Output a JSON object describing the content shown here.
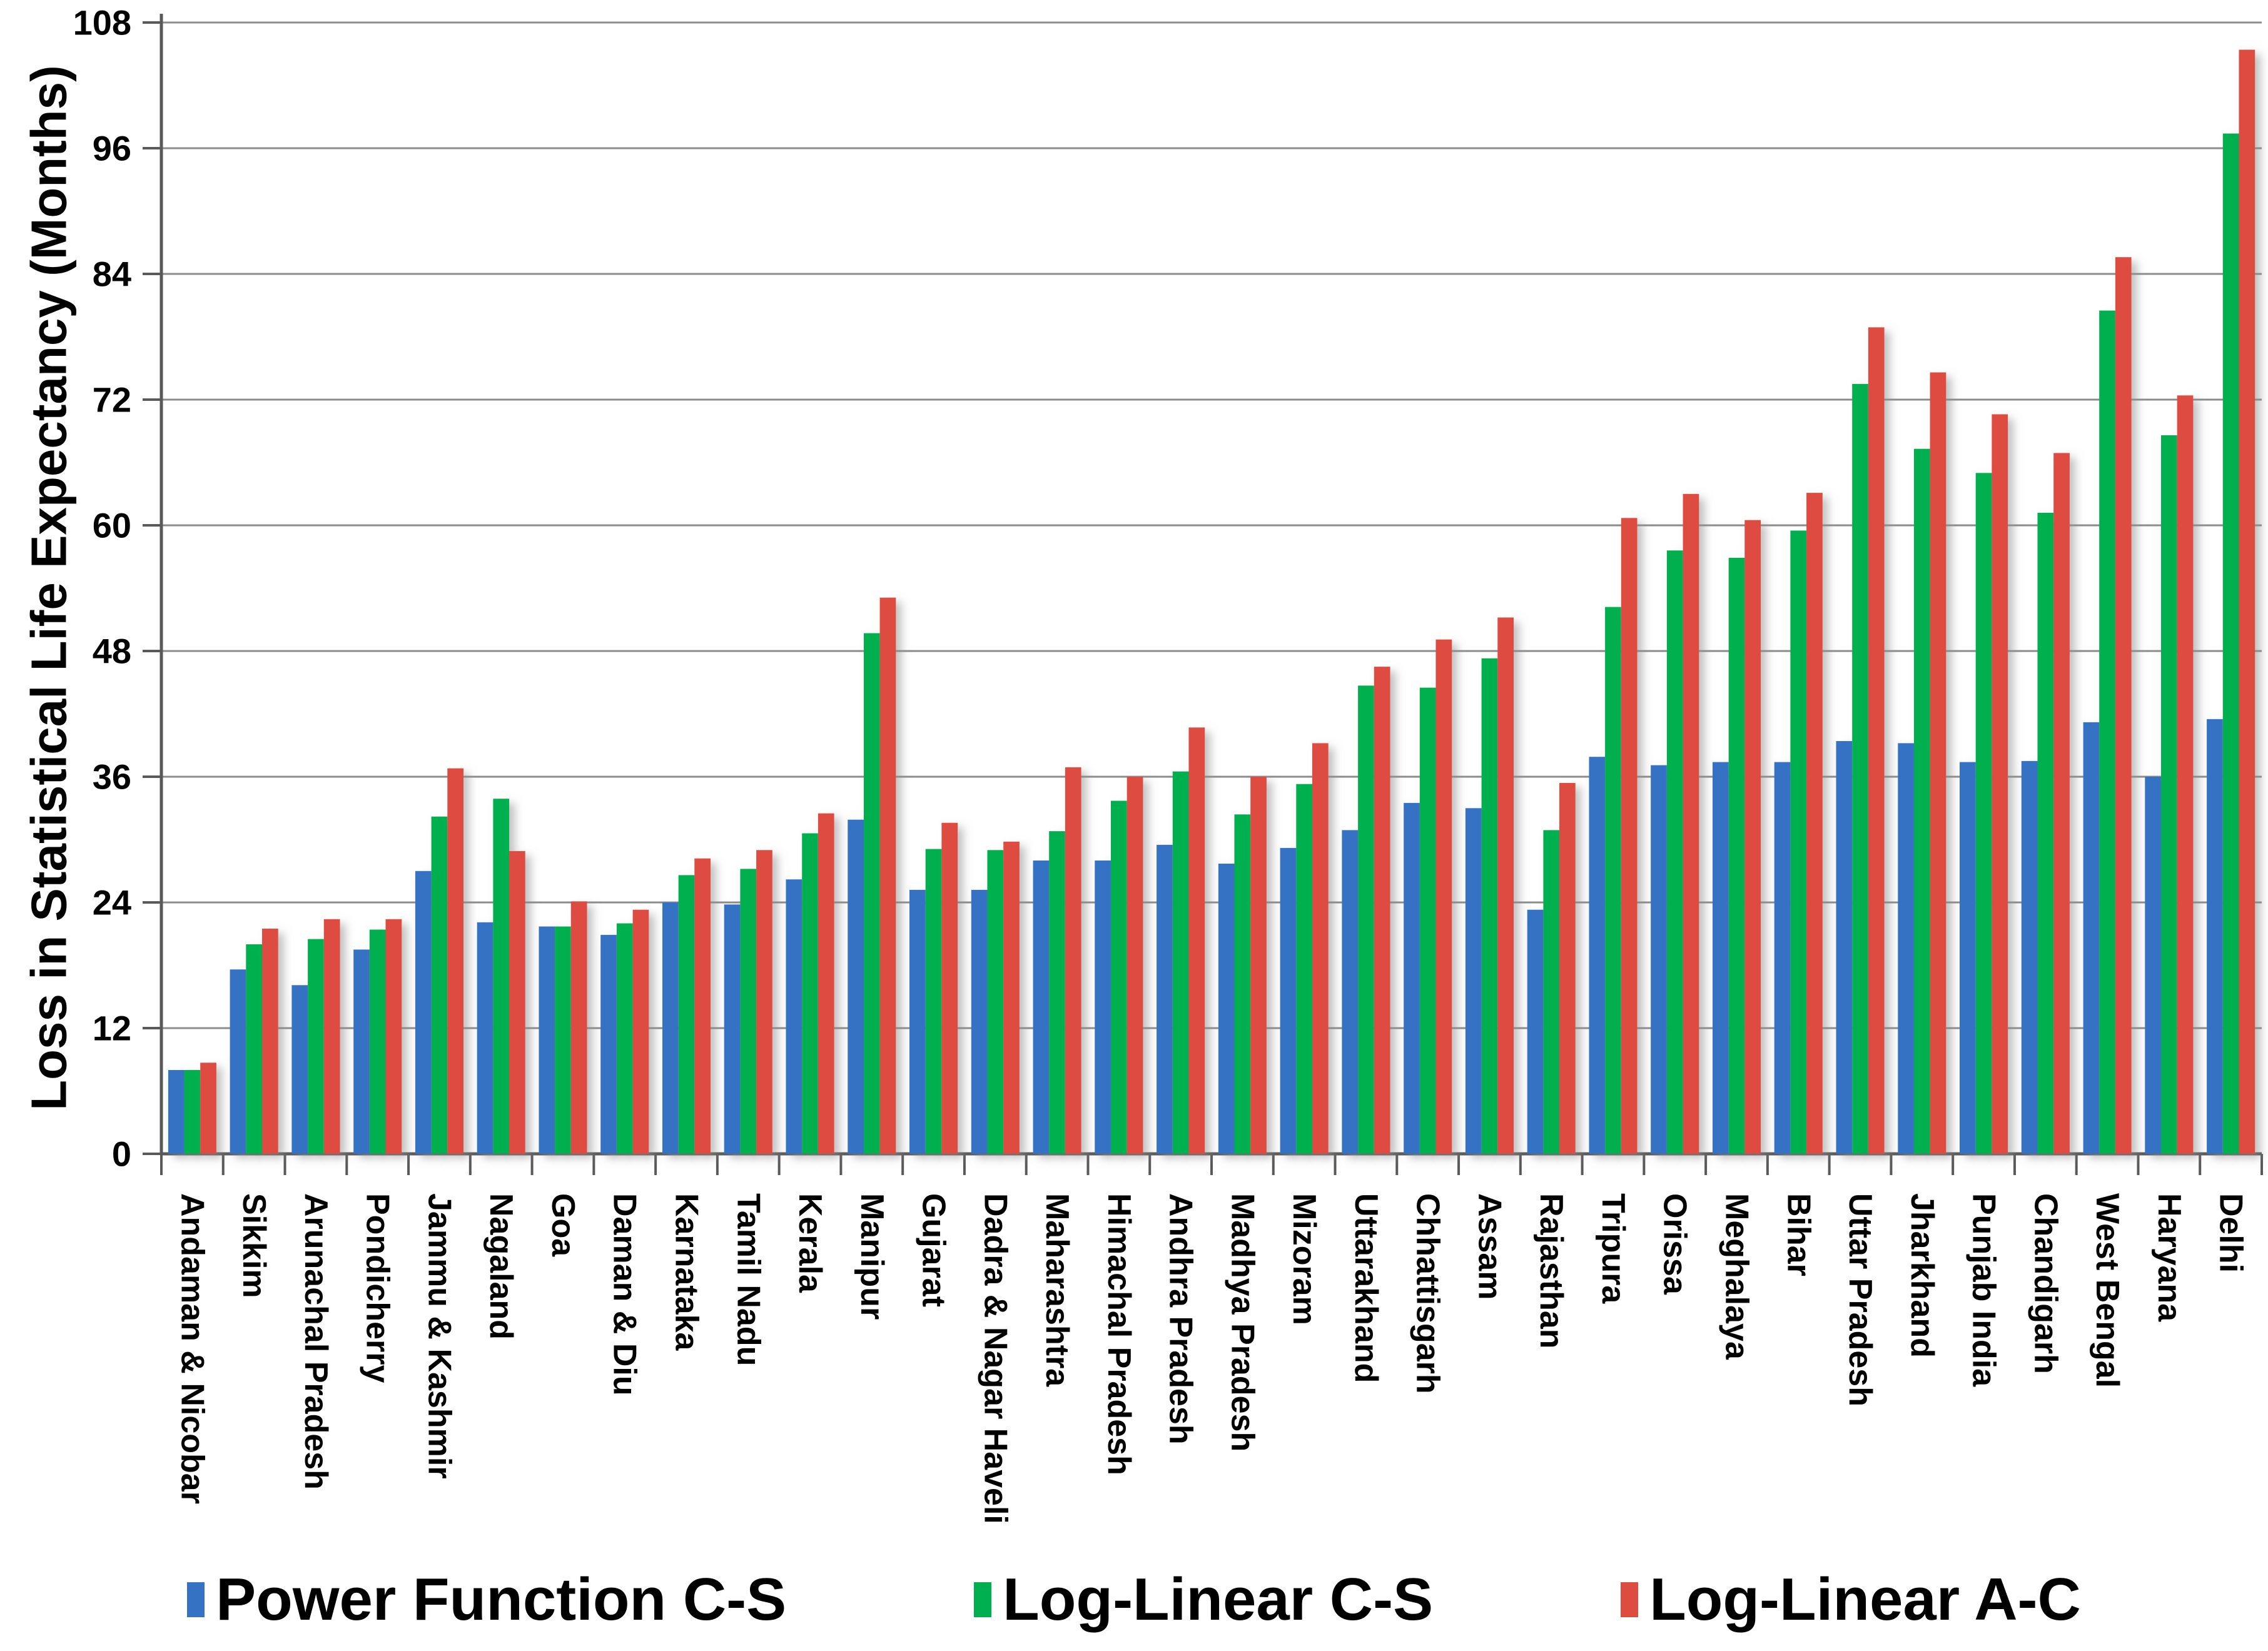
{
  "chart_data": {
    "type": "bar",
    "title": "",
    "xlabel": "",
    "ylabel": "Loss in Statistical Life Expectancy (Months)",
    "ylim": [
      0,
      108
    ],
    "yticks": [
      0,
      12,
      24,
      36,
      48,
      60,
      72,
      84,
      96,
      108
    ],
    "grid": true,
    "legend_position": "bottom",
    "grid_color": "#8c8c8c",
    "axis_color": "#595959",
    "categories": [
      "Andaman & Nicobar",
      "Sikkim",
      "Arunachal Pradesh",
      "Pondicherry",
      "Jammu & Kashmir",
      "Nagaland",
      "Goa",
      "Daman & Diu",
      "Karnataka",
      "Tamil Nadu",
      "Kerala",
      "Manipur",
      "Gujarat",
      "Dadra & Nagar Haveli",
      "Maharashtra",
      "Himachal Pradesh",
      "Andhra Pradesh",
      "Madhya Pradesh",
      "Mizoram",
      "Uttarakhand",
      "Chhattisgarh",
      "Assam",
      "Rajasthan",
      "Tripura",
      "Orissa",
      "Meghalaya",
      "Bihar",
      "Uttar Pradesh",
      "Jharkhand",
      "Punjab India",
      "Chandigarh",
      "West Bengal",
      "Haryana",
      "Delhi"
    ],
    "series": [
      {
        "name": "Power Function C-S",
        "color": "#3572C4",
        "values": [
          8,
          17.6,
          16.1,
          19.5,
          27,
          22.1,
          21.7,
          20.9,
          24,
          23.8,
          26.2,
          31.9,
          25.2,
          25.2,
          28,
          28,
          29.5,
          27.7,
          29.2,
          30.9,
          33.5,
          33,
          23.3,
          37.9,
          37.1,
          37.4,
          37.4,
          39.4,
          39.2,
          37.4,
          37.5,
          41.2,
          36,
          41.5
        ]
      },
      {
        "name": "Log-Linear C-S",
        "color": "#00B050",
        "values": [
          8,
          20,
          20.5,
          21.4,
          32.2,
          33.9,
          21.7,
          22,
          26.6,
          27.2,
          30.6,
          49.7,
          29.1,
          29,
          30.8,
          33.7,
          36.5,
          32.4,
          35.3,
          44.7,
          44.5,
          47.3,
          30.9,
          52.2,
          57.6,
          56.9,
          59.5,
          73.5,
          67.3,
          65,
          61.2,
          80.5,
          68.6,
          97.4
        ]
      },
      {
        "name": "Log-Linear A-C",
        "color": "#DE4C3F",
        "values": [
          8.7,
          21.5,
          22.4,
          22.4,
          36.8,
          28.9,
          24.1,
          23.3,
          28.2,
          29,
          32.5,
          53.1,
          31.6,
          29.8,
          36.9,
          36,
          40.7,
          36,
          39.2,
          46.5,
          49.1,
          51.2,
          35.4,
          60.7,
          63,
          60.5,
          63.1,
          78.9,
          74.6,
          70.6,
          66.9,
          85.6,
          72.4,
          105.4
        ]
      }
    ]
  }
}
